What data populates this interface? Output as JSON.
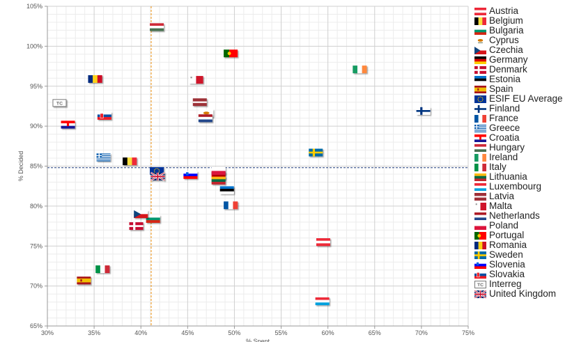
{
  "chart_data": {
    "type": "scatter",
    "title": "",
    "xlabel": "% Spent",
    "ylabel": "% Decided",
    "xlim": [
      30,
      75
    ],
    "ylim": [
      65,
      105
    ],
    "x_ticks": [
      "30%",
      "35%",
      "40%",
      "45%",
      "50%",
      "55%",
      "60%",
      "65%",
      "70%",
      "75%"
    ],
    "y_ticks": [
      "65%",
      "70%",
      "75%",
      "80%",
      "85%",
      "90%",
      "95%",
      "100%",
      "105%"
    ],
    "grid": true,
    "legend_position": "right",
    "reference_lines": {
      "x": 41.1,
      "y": 84.8,
      "x_color": "#f0a030",
      "y_color": "#1f3a7a"
    },
    "points": [
      {
        "name": "Austria",
        "x": 59.5,
        "y": 75.5
      },
      {
        "name": "Belgium",
        "x": 38.8,
        "y": 85.6
      },
      {
        "name": "Bulgaria",
        "x": 41.3,
        "y": 78.4
      },
      {
        "name": "Cyprus",
        "x": 47.0,
        "y": 91.6
      },
      {
        "name": "Czechia",
        "x": 40.0,
        "y": 79.0
      },
      {
        "name": "Germany",
        "x": 48.3,
        "y": 83.8
      },
      {
        "name": "Denmark",
        "x": 39.5,
        "y": 77.5
      },
      {
        "name": "Estonia",
        "x": 49.2,
        "y": 82.0
      },
      {
        "name": "Spain",
        "x": 33.9,
        "y": 70.7
      },
      {
        "name": "ESIF EU Average",
        "x": 41.7,
        "y": 84.4
      },
      {
        "name": "Finland",
        "x": 70.2,
        "y": 91.9
      },
      {
        "name": "France",
        "x": 49.6,
        "y": 80.1
      },
      {
        "name": "Greece",
        "x": 36.0,
        "y": 86.1
      },
      {
        "name": "Croatia",
        "x": 32.2,
        "y": 90.2
      },
      {
        "name": "Hungary",
        "x": 41.7,
        "y": 102.4
      },
      {
        "name": "Ireland",
        "x": 63.4,
        "y": 97.1
      },
      {
        "name": "Italy",
        "x": 35.9,
        "y": 72.1
      },
      {
        "name": "Lithuania",
        "x": 48.3,
        "y": 83.2
      },
      {
        "name": "Luxembourg",
        "x": 59.4,
        "y": 68.1
      },
      {
        "name": "Latvia",
        "x": 46.3,
        "y": 93.0
      },
      {
        "name": "Malta",
        "x": 45.9,
        "y": 95.8
      },
      {
        "name": "Netherlands",
        "x": 46.9,
        "y": 91.0
      },
      {
        "name": "Poland",
        "x": 48.3,
        "y": 84.4
      },
      {
        "name": "Portugal",
        "x": 49.6,
        "y": 99.1
      },
      {
        "name": "Romania",
        "x": 35.1,
        "y": 95.9
      },
      {
        "name": "Sweden",
        "x": 58.7,
        "y": 86.7
      },
      {
        "name": "Slovenia",
        "x": 45.3,
        "y": 83.9
      },
      {
        "name": "Slovakia",
        "x": 36.1,
        "y": 91.3
      },
      {
        "name": "Interreg",
        "x": 31.3,
        "y": 92.9
      },
      {
        "name": "United Kingdom",
        "x": 41.8,
        "y": 83.7
      }
    ]
  },
  "legend": [
    {
      "label": "Austria",
      "icon": "flag-austria"
    },
    {
      "label": "Belgium",
      "icon": "flag-belgium"
    },
    {
      "label": "Bulgaria",
      "icon": "flag-bulgaria"
    },
    {
      "label": "Cyprus",
      "icon": "flag-cyprus"
    },
    {
      "label": "Czechia",
      "icon": "flag-czechia"
    },
    {
      "label": "Germany",
      "icon": "flag-germany"
    },
    {
      "label": "Denmark",
      "icon": "flag-denmark"
    },
    {
      "label": "Estonia",
      "icon": "flag-estonia"
    },
    {
      "label": "Spain",
      "icon": "flag-spain"
    },
    {
      "label": "ESIF EU Average",
      "icon": "flag-eu"
    },
    {
      "label": "Finland",
      "icon": "flag-finland"
    },
    {
      "label": "France",
      "icon": "flag-france"
    },
    {
      "label": "Greece",
      "icon": "flag-greece"
    },
    {
      "label": "Croatia",
      "icon": "flag-croatia"
    },
    {
      "label": "Hungary",
      "icon": "flag-hungary"
    },
    {
      "label": "Ireland",
      "icon": "flag-ireland"
    },
    {
      "label": "Italy",
      "icon": "flag-italy"
    },
    {
      "label": "Lithuania",
      "icon": "flag-lithuania"
    },
    {
      "label": "Luxembourg",
      "icon": "flag-luxembourg"
    },
    {
      "label": "Latvia",
      "icon": "flag-latvia"
    },
    {
      "label": "Malta",
      "icon": "flag-malta"
    },
    {
      "label": "Netherlands",
      "icon": "flag-netherlands"
    },
    {
      "label": "Poland",
      "icon": "flag-poland"
    },
    {
      "label": "Portugal",
      "icon": "flag-portugal"
    },
    {
      "label": "Romania",
      "icon": "flag-romania"
    },
    {
      "label": "Sweden",
      "icon": "flag-sweden"
    },
    {
      "label": "Slovenia",
      "icon": "flag-slovenia"
    },
    {
      "label": "Slovakia",
      "icon": "flag-slovakia"
    },
    {
      "label": "Interreg",
      "icon": "interreg-tc-icon"
    },
    {
      "label": "United Kingdom",
      "icon": "flag-united-kingdom"
    }
  ]
}
